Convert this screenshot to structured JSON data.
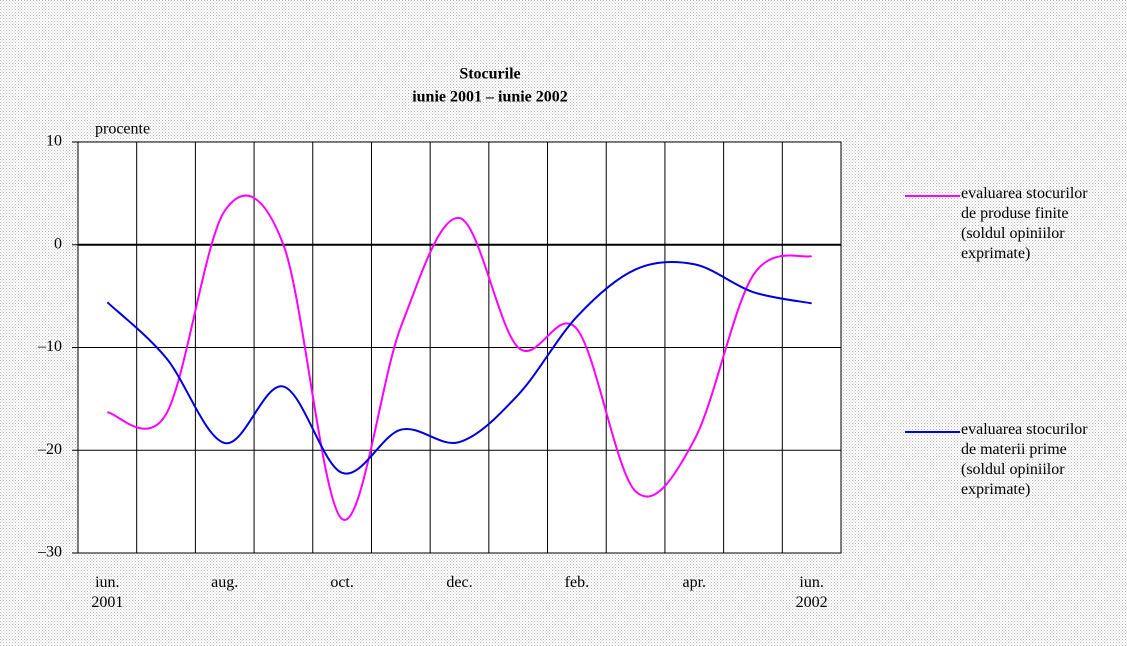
{
  "chart_data": {
    "type": "line",
    "title": "Stocurile",
    "subtitle": "iunie 2001 – iunie 2002",
    "y_label": "procente",
    "categories": [
      "iun. 2001",
      null,
      "aug.",
      null,
      "oct.",
      null,
      "dec.",
      null,
      "feb.",
      null,
      "apr.",
      null,
      "iun. 2002"
    ],
    "series": [
      {
        "name": "evaluarea stocurilor de produse finite (soldul opiniilor exprimate)",
        "color": "#ff00ff",
        "values": [
          -16.3,
          -16.5,
          3.3,
          0,
          -26.7,
          -8,
          2.6,
          -10,
          -8.2,
          -24,
          -19,
          -3,
          -1.1
        ]
      },
      {
        "name": "evaluarea stocurilor de materii prime (soldul opiniilor exprimate)",
        "color": "#0000dd",
        "values": [
          -5.6,
          -11,
          -19.3,
          -13.8,
          -22.2,
          -18,
          -19.2,
          -14.6,
          -7,
          -2.4,
          -1.9,
          -4.6,
          -5.7
        ]
      }
    ],
    "ylim": [
      -30,
      10
    ],
    "yticks": [
      {
        "value": -30,
        "label": "–30"
      },
      {
        "value": -20,
        "label": "–20"
      },
      {
        "value": -10,
        "label": "–10"
      },
      0,
      10
    ],
    "grid": true,
    "legend": "right"
  }
}
